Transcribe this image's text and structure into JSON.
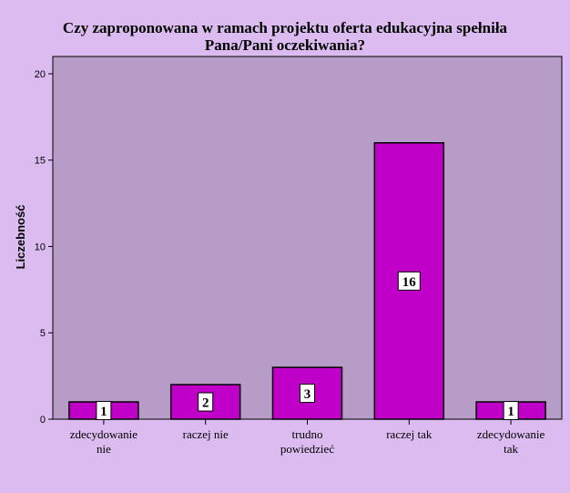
{
  "colors": {
    "page_background": "#dcbcf0",
    "plot_background": "#b89cc8",
    "bar_fill": "#c000c8",
    "bar_stroke": "#000000",
    "label_box": "#ffffff"
  },
  "chart_data": {
    "type": "bar",
    "title_lines": [
      "Czy zaproponowana w ramach projektu oferta edukacyjna spełniła",
      "Pana/Pani oczekiwania?"
    ],
    "xlabel": "",
    "ylabel": "Liczebność",
    "ylim": [
      0,
      21
    ],
    "yticks": [
      "0",
      "5",
      "10",
      "15",
      "20"
    ],
    "grid": false,
    "legend": "none",
    "categories": [
      {
        "lines": [
          "zdecydowanie",
          "nie"
        ]
      },
      {
        "lines": [
          "raczej nie"
        ]
      },
      {
        "lines": [
          "trudno",
          "powiedzieć"
        ]
      },
      {
        "lines": [
          "raczej tak"
        ]
      },
      {
        "lines": [
          "zdecydowanie",
          "tak"
        ]
      }
    ],
    "values": [
      1,
      2,
      3,
      16,
      1
    ],
    "data_labels": [
      "1",
      "2",
      "3",
      "16",
      "1"
    ]
  }
}
